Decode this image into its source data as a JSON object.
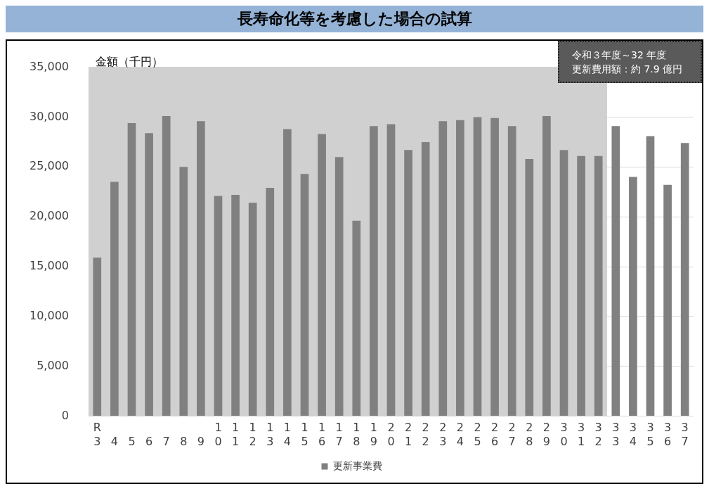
{
  "chart_data": {
    "type": "bar",
    "title": "長寿命化等を考慮した場合の試算",
    "ylabel": "金額（千円）",
    "categories": [
      "R3",
      "4",
      "5",
      "6",
      "7",
      "8",
      "9",
      "10",
      "11",
      "12",
      "13",
      "14",
      "15",
      "16",
      "17",
      "18",
      "19",
      "20",
      "21",
      "22",
      "23",
      "24",
      "25",
      "26",
      "27",
      "28",
      "29",
      "30",
      "31",
      "32",
      "33",
      "34",
      "35",
      "36",
      "37"
    ],
    "series": [
      {
        "name": "更新事業費",
        "color": "#808080",
        "values": [
          15900,
          23500,
          29400,
          28400,
          30100,
          25000,
          29600,
          22100,
          22200,
          21400,
          22900,
          28800,
          24300,
          28300,
          26000,
          19600,
          29100,
          29300,
          26700,
          27500,
          29600,
          29700,
          30000,
          29900,
          29100,
          25800,
          30100,
          26700,
          26100,
          26100,
          29100,
          24000,
          28100,
          23200,
          27400
        ]
      }
    ],
    "ylim": [
      0,
      35000
    ],
    "yticks": [
      0,
      {
        "value": 5000,
        "label": "5,000"
      },
      {
        "value": 10000,
        "label": "10,000"
      },
      {
        "value": 15000,
        "label": "15,000"
      },
      {
        "value": 20000,
        "label": "20,000"
      },
      {
        "value": 25000,
        "label": "25,000"
      },
      {
        "value": 30000,
        "label": "30,000"
      },
      {
        "value": 35000,
        "label": "35,000"
      }
    ],
    "grid": "y",
    "legend": "bottom",
    "bands": [
      {
        "axis": "x",
        "from": "R3",
        "to": "32",
        "color": "#d0d0d0"
      }
    ],
    "annotations": [
      "令和３年度～32 年度",
      "更新費用額：約 7.9 億円"
    ]
  }
}
